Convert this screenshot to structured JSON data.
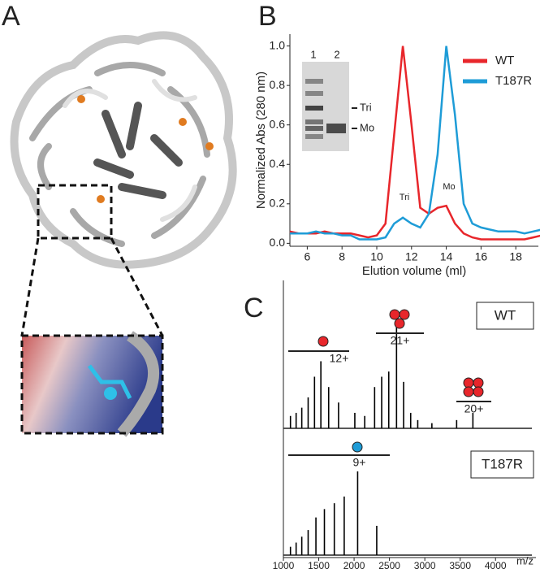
{
  "panel_a": {
    "label": "A"
  },
  "chart_data": [
    {
      "type": "line",
      "panel_label": "B",
      "x_label": "Elution volume (ml)",
      "y_label": "Normalized Abs (280 nm)",
      "x": [
        5,
        5.5,
        6,
        6.5,
        7,
        7.5,
        8,
        8.5,
        9,
        9.5,
        10,
        10.5,
        11,
        11.5,
        12,
        12.5,
        13,
        13.5,
        14,
        14.5,
        15,
        15.5,
        16,
        16.5,
        17,
        17.5,
        18,
        18.5,
        19,
        19.5
      ],
      "series": [
        {
          "name": "WT",
          "color": "#e8262b",
          "values": [
            0.06,
            0.05,
            0.05,
            0.05,
            0.06,
            0.05,
            0.05,
            0.05,
            0.04,
            0.03,
            0.04,
            0.1,
            0.55,
            1.0,
            0.6,
            0.18,
            0.15,
            0.18,
            0.19,
            0.1,
            0.05,
            0.03,
            0.02,
            0.02,
            0.02,
            0.02,
            0.02,
            0.02,
            0.03,
            0.04
          ]
        },
        {
          "name": "T187R",
          "color": "#1e9cd7",
          "values": [
            0.05,
            0.05,
            0.05,
            0.06,
            0.05,
            0.05,
            0.04,
            0.04,
            0.02,
            0.02,
            0.02,
            0.03,
            0.1,
            0.13,
            0.1,
            0.08,
            0.15,
            0.45,
            1.0,
            0.65,
            0.2,
            0.1,
            0.08,
            0.07,
            0.06,
            0.06,
            0.06,
            0.05,
            0.06,
            0.07
          ]
        }
      ],
      "xlim": [
        5,
        19.3
      ],
      "xticks": [
        6,
        8,
        10,
        12,
        14,
        16,
        18
      ],
      "ylim": [
        -0.015,
        1.06
      ],
      "yticks": [
        {
          "value": 0,
          "label": "0.0"
        },
        0.2,
        0.4,
        0.6,
        0.8,
        {
          "value": 1,
          "label": "1.0"
        }
      ],
      "legend": "upper right",
      "annotations": [
        "Tri",
        "Mo"
      ],
      "inset_labels": [
        "1",
        "2",
        "Tri",
        "Mo"
      ]
    },
    {
      "type": "spectrum",
      "panel_label": "C",
      "x_label": "m/z",
      "xlim": [
        1000,
        4250
      ],
      "xticks": [
        1000,
        1500,
        2000,
        2500,
        3000,
        3500,
        4000
      ],
      "ylim": [
        0,
        100
      ],
      "series": [
        {
          "name": "WT",
          "color": "#000000",
          "x": [
            1100,
            1180,
            1260,
            1350,
            1440,
            1530,
            1640,
            1780,
            2010,
            2150,
            2290,
            2390,
            2490,
            2600,
            2700,
            2800,
            2900,
            3100,
            3450,
            3680
          ],
          "values": [
            12,
            15,
            20,
            30,
            50,
            65,
            40,
            25,
            15,
            12,
            40,
            50,
            55,
            100,
            45,
            15,
            8,
            5,
            8,
            15
          ]
        },
        {
          "name": "T187R",
          "color": "#000000",
          "x": [
            1100,
            1180,
            1260,
            1350,
            1460,
            1580,
            1720,
            1860,
            2050,
            2320
          ],
          "values": [
            10,
            15,
            22,
            30,
            45,
            55,
            62,
            70,
            100,
            35
          ]
        }
      ],
      "annotations": [
        "12+",
        "21+",
        "20+",
        "9+"
      ]
    }
  ]
}
